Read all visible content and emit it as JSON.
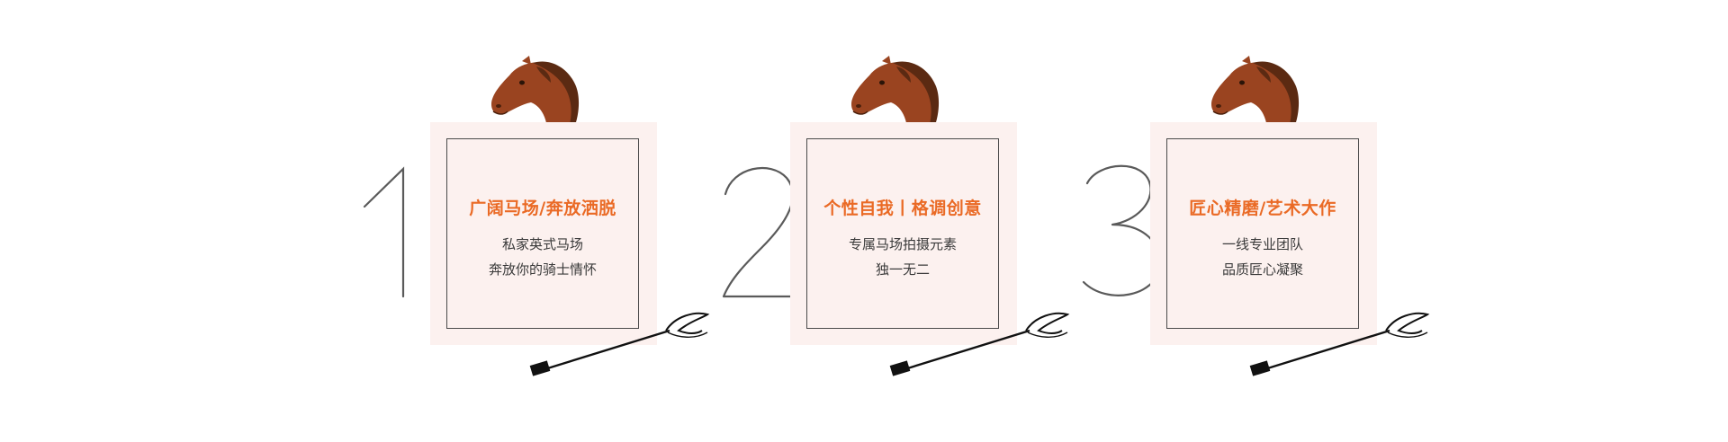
{
  "colors": {
    "background": "#ffffff",
    "card_fill": "#fcf1ef",
    "card_border": "#4a4a4a",
    "title": "#ea6a25",
    "body_text": "#3a3a3a",
    "numeral": "#5a5a5a",
    "horse_brown": "#9a4420",
    "horse_mane": "#5b2a12"
  },
  "features": [
    {
      "number": "1",
      "title": "广阔马场/奔放洒脱",
      "lines": [
        "私家英式马场",
        "奔放你的骑士情怀"
      ],
      "icons": [
        "horse-head-icon",
        "riding-whip-icon"
      ]
    },
    {
      "number": "2",
      "title": "个性自我丨格调创意",
      "lines": [
        "专属马场拍摄元素",
        "独一无二"
      ],
      "icons": [
        "horse-head-icon",
        "riding-whip-icon"
      ]
    },
    {
      "number": "3",
      "title": "匠心精磨/艺术大作",
      "lines": [
        "一线专业团队",
        "品质匠心凝聚"
      ],
      "icons": [
        "horse-head-icon",
        "riding-whip-icon"
      ]
    }
  ]
}
